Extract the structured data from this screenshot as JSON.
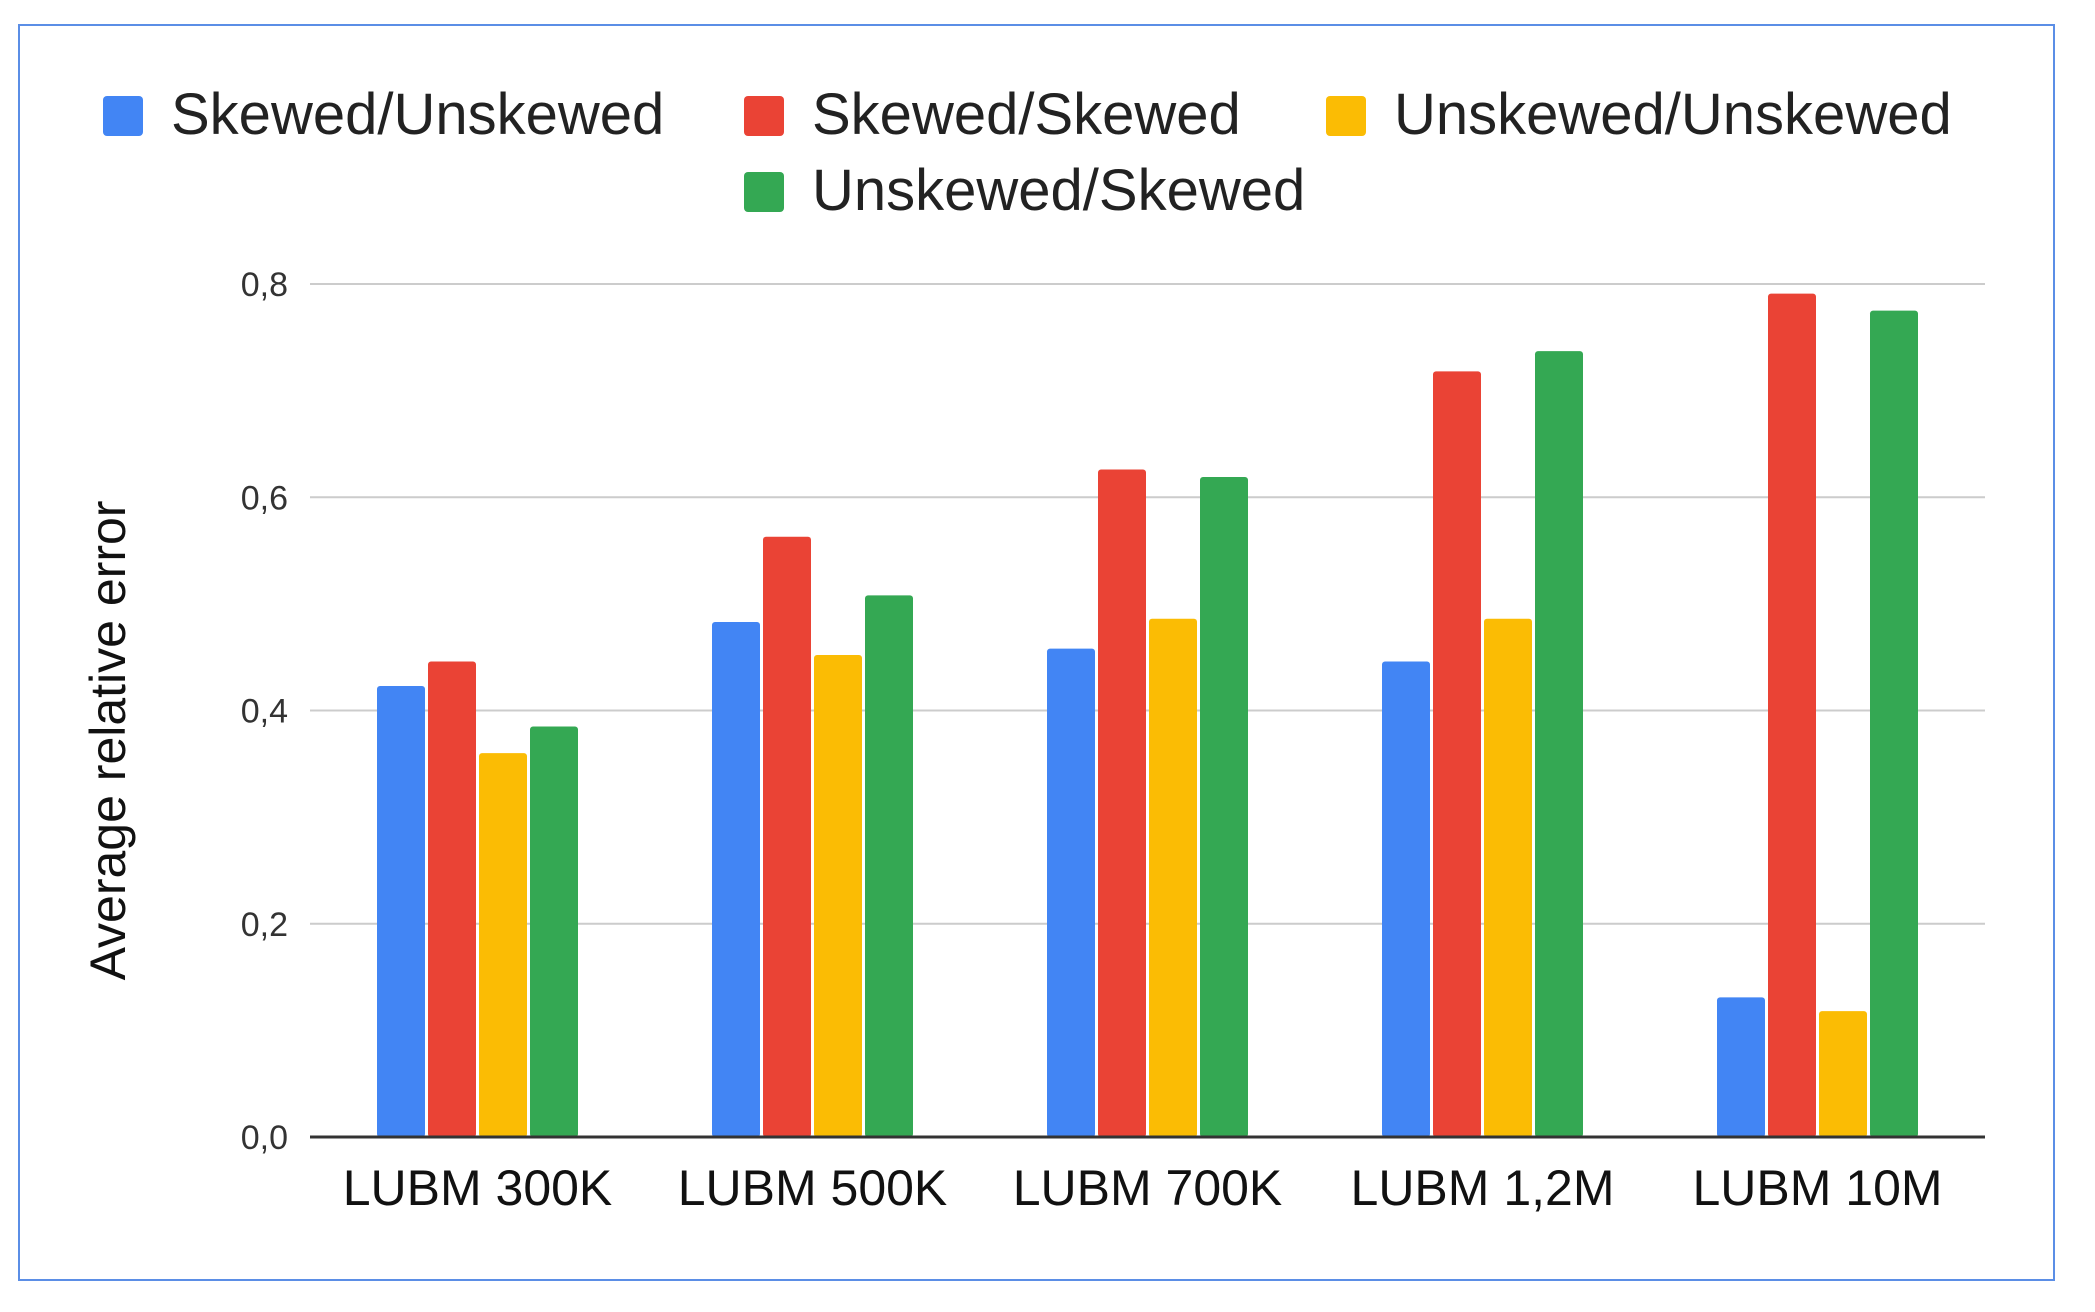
{
  "chart_data": {
    "type": "bar",
    "title": "",
    "xlabel": "",
    "ylabel": "Average relative error",
    "categories": [
      "LUBM 300K",
      "LUBM 500K",
      "LUBM 700K",
      "LUBM 1,2M",
      "LUBM 10M"
    ],
    "series": [
      {
        "name": "Skewed/Unskewed",
        "color": "#4285f4",
        "values": [
          0.423,
          0.483,
          0.458,
          0.446,
          0.131
        ]
      },
      {
        "name": "Skewed/Skewed",
        "color": "#ea4335",
        "values": [
          0.446,
          0.563,
          0.626,
          0.718,
          0.791
        ]
      },
      {
        "name": "Unskewed/Unskewed",
        "color": "#fbbc04",
        "values": [
          0.36,
          0.452,
          0.486,
          0.486,
          0.118
        ]
      },
      {
        "name": "Unskewed/Skewed",
        "color": "#34a853",
        "values": [
          0.385,
          0.508,
          0.619,
          0.737,
          0.775
        ]
      }
    ],
    "ylim": [
      0,
      0.8
    ],
    "yticks": [
      "0,0",
      "0,2",
      "0,4",
      "0,6",
      "0,8"
    ],
    "grid": true,
    "legend_position": "top",
    "frame_color": "#5b8ee6"
  }
}
